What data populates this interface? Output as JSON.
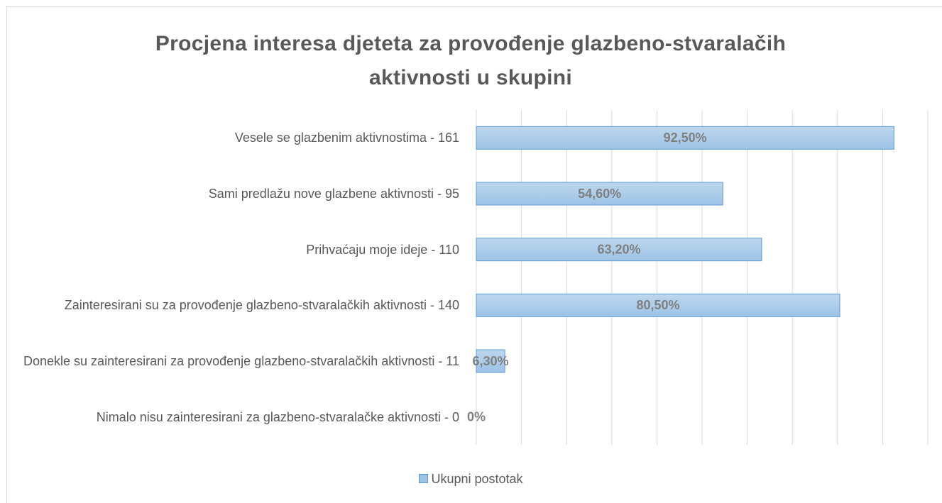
{
  "chart_data": {
    "type": "barh",
    "title": "Procjena interesa djeteta za provođenje glazbeno-stvaralačih aktivnosti u skupini",
    "categories": [
      "Vesele se glazbenim aktivnostima - 161",
      "Sami predlažu nove glazbene aktivnosti - 95",
      "Prihvaćaju moje ideje - 110",
      "Zainteresirani su za provođenje glazbeno-stvaralačkih aktivnosti - 140",
      "Donekle su zainteresirani za provođenje glazbeno-stvaralačkih aktivnosti - 11",
      "Nimalo nisu zainteresirani za glazbeno-stvaralačke aktivnosti - 0"
    ],
    "series": [
      {
        "name": "Ukupni postotak",
        "color": "#9dc3e6",
        "values": [
          92.5,
          54.6,
          63.2,
          80.5,
          6.3,
          0
        ],
        "value_labels": [
          "92,50%",
          "54,60%",
          "63,20%",
          "80,50%",
          "6,30%",
          "0%"
        ]
      }
    ],
    "xlim": [
      0,
      100
    ],
    "gridlines": [
      0,
      10,
      20,
      30,
      40,
      50,
      60,
      70,
      80,
      90,
      100
    ],
    "legend": "bottom"
  }
}
